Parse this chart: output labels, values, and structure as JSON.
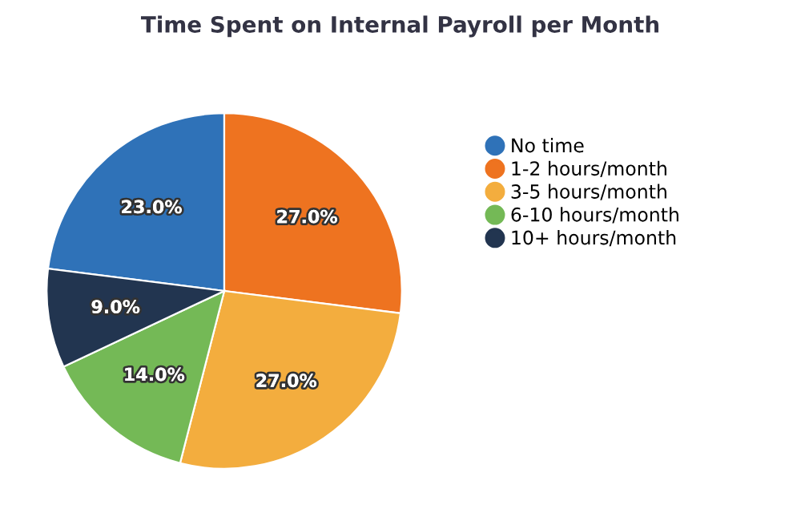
{
  "chart_data": {
    "type": "pie",
    "title": "Time Spent on Internal Payroll per Month",
    "categories": [
      "No time",
      "1-2 hours/month",
      "3-5 hours/month",
      "6-10 hours/month",
      "10+ hours/month"
    ],
    "values": [
      23,
      27,
      27,
      14,
      9
    ],
    "value_labels": [
      "23.0%",
      "27.0%",
      "27.0%",
      "14.0%",
      "9.0%"
    ],
    "colors": [
      "#2f72b8",
      "#ee7320",
      "#f3ad3e",
      "#74b956",
      "#223550"
    ],
    "legend": "right"
  }
}
